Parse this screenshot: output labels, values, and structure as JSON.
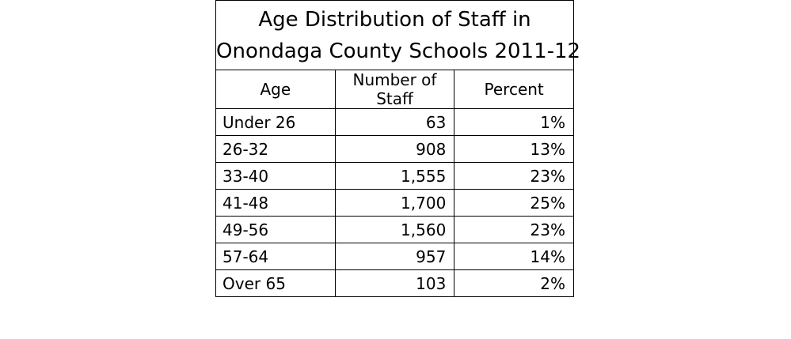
{
  "chart_data": {
    "type": "table",
    "title": [
      "Age Distribution of Staff in",
      "Onondaga County Schools 2011-12"
    ],
    "columns": [
      "Age",
      "Number of Staff",
      "Percent"
    ],
    "rows": [
      {
        "age": "Under 26",
        "staff": "63",
        "percent": "1%"
      },
      {
        "age": "26-32",
        "staff": "908",
        "percent": "13%"
      },
      {
        "age": "33-40",
        "staff": "1,555",
        "percent": "23%"
      },
      {
        "age": "41-48",
        "staff": "1,700",
        "percent": "25%"
      },
      {
        "age": "49-56",
        "staff": "1,560",
        "percent": "23%"
      },
      {
        "age": "57-64",
        "staff": "957",
        "percent": "14%"
      },
      {
        "age": "Over 65",
        "staff": "103",
        "percent": "2%"
      }
    ]
  }
}
